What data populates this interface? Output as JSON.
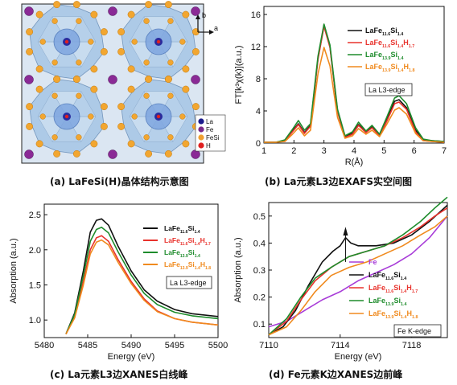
{
  "captions": {
    "a": "(a) LaFeSi(H)晶体结构示意图",
    "b": "(b) La元素L3边EXAFS实空间图",
    "c": "(c) La元素L3边XANES白线峰",
    "d": "(d) Fe元素K边XANES边前峰"
  },
  "crystal": {
    "axis_b": "b",
    "axis_a": "a",
    "legend": [
      {
        "label": "La",
        "color": "#1a1a8c"
      },
      {
        "label": "Fe",
        "color": "#7a2a8a"
      },
      {
        "label": "FeSi",
        "color": "#f0a030"
      },
      {
        "label": "H",
        "color": "#e02020"
      }
    ]
  },
  "colors": {
    "black": "#111111",
    "red": "#e8322c",
    "green": "#1e8c2c",
    "orange": "#f08a1e",
    "purple": "#a83cd8"
  },
  "legend_labels": [
    {
      "base": "LaFe",
      "s1": "11.6",
      "mid": "Si",
      "s2": "1.4",
      "h": "",
      "s3": ""
    },
    {
      "base": "LaFe",
      "s1": "11.6",
      "mid": "Si",
      "s2": "1.4",
      "h": "H",
      "s3": "1.7"
    },
    {
      "base": "LaFe",
      "s1": "13.9",
      "mid": "Si",
      "s2": "1.4",
      "h": "",
      "s3": ""
    },
    {
      "base": "LaFe",
      "s1": "13.9",
      "mid": "Si",
      "s2": "1.4",
      "h": "H",
      "s3": "1.8"
    }
  ],
  "chart_data": [
    {
      "id": "b",
      "type": "line",
      "xlabel": "R(Å)",
      "ylabel": "FT[k³χ(k)](a.u.)",
      "xlim": [
        1,
        7
      ],
      "ylim": [
        0,
        17
      ],
      "xticks": [
        1,
        2,
        3,
        4,
        5,
        6,
        7
      ],
      "yticks": [
        0,
        4,
        8,
        12,
        16
      ],
      "edge_label": "La L3-edge",
      "series": [
        {
          "name": "LaFe11.6Si1.4",
          "color_key": "black",
          "points": [
            [
              1,
              0.1
            ],
            [
              1.4,
              0.1
            ],
            [
              1.7,
              0.3
            ],
            [
              1.95,
              1.5
            ],
            [
              2.15,
              2.4
            ],
            [
              2.35,
              1.3
            ],
            [
              2.55,
              2.2
            ],
            [
              2.8,
              10.5
            ],
            [
              3.0,
              14.7
            ],
            [
              3.2,
              12.0
            ],
            [
              3.45,
              4.0
            ],
            [
              3.7,
              0.8
            ],
            [
              3.95,
              1.2
            ],
            [
              4.15,
              2.3
            ],
            [
              4.4,
              1.4
            ],
            [
              4.6,
              2.0
            ],
            [
              4.85,
              1.0
            ],
            [
              5.1,
              3.0
            ],
            [
              5.35,
              5.2
            ],
            [
              5.5,
              5.4
            ],
            [
              5.75,
              4.4
            ],
            [
              6.05,
              1.6
            ],
            [
              6.3,
              0.4
            ],
            [
              6.6,
              0.3
            ],
            [
              7,
              0.2
            ]
          ]
        },
        {
          "name": "LaFe11.6Si1.4H1.7",
          "color_key": "red",
          "points": [
            [
              1,
              0.1
            ],
            [
              1.4,
              0.1
            ],
            [
              1.7,
              0.3
            ],
            [
              1.95,
              1.4
            ],
            [
              2.15,
              2.3
            ],
            [
              2.35,
              1.2
            ],
            [
              2.55,
              2.1
            ],
            [
              2.8,
              10.4
            ],
            [
              3.0,
              14.5
            ],
            [
              3.2,
              11.9
            ],
            [
              3.45,
              3.9
            ],
            [
              3.7,
              0.7
            ],
            [
              3.95,
              1.1
            ],
            [
              4.15,
              2.2
            ],
            [
              4.4,
              1.3
            ],
            [
              4.6,
              1.9
            ],
            [
              4.85,
              0.9
            ],
            [
              5.1,
              2.8
            ],
            [
              5.35,
              4.9
            ],
            [
              5.5,
              5.1
            ],
            [
              5.75,
              4.2
            ],
            [
              6.05,
              1.4
            ],
            [
              6.3,
              0.3
            ],
            [
              6.6,
              0.2
            ],
            [
              7,
              0.1
            ]
          ]
        },
        {
          "name": "LaFe13.9Si1.4",
          "color_key": "green",
          "points": [
            [
              1,
              0.1
            ],
            [
              1.4,
              0.1
            ],
            [
              1.7,
              0.4
            ],
            [
              1.95,
              1.7
            ],
            [
              2.15,
              2.8
            ],
            [
              2.35,
              1.6
            ],
            [
              2.55,
              2.4
            ],
            [
              2.8,
              10.8
            ],
            [
              3.0,
              14.8
            ],
            [
              3.2,
              12.2
            ],
            [
              3.45,
              4.2
            ],
            [
              3.7,
              0.9
            ],
            [
              3.95,
              1.4
            ],
            [
              4.15,
              2.6
            ],
            [
              4.4,
              1.5
            ],
            [
              4.6,
              2.2
            ],
            [
              4.85,
              1.1
            ],
            [
              5.1,
              3.3
            ],
            [
              5.35,
              5.6
            ],
            [
              5.5,
              5.9
            ],
            [
              5.75,
              4.9
            ],
            [
              6.05,
              1.9
            ],
            [
              6.3,
              0.5
            ],
            [
              6.6,
              0.3
            ],
            [
              7,
              0.2
            ]
          ]
        },
        {
          "name": "LaFe13.9Si1.4H1.8",
          "color_key": "orange",
          "points": [
            [
              1,
              0.1
            ],
            [
              1.4,
              0.1
            ],
            [
              1.7,
              0.2
            ],
            [
              1.95,
              1.1
            ],
            [
              2.15,
              1.9
            ],
            [
              2.35,
              0.9
            ],
            [
              2.55,
              1.6
            ],
            [
              2.8,
              8.6
            ],
            [
              3.0,
              11.9
            ],
            [
              3.2,
              9.6
            ],
            [
              3.45,
              3.2
            ],
            [
              3.7,
              0.6
            ],
            [
              3.95,
              0.9
            ],
            [
              4.15,
              1.8
            ],
            [
              4.4,
              1.1
            ],
            [
              4.6,
              1.6
            ],
            [
              4.85,
              0.8
            ],
            [
              5.1,
              2.4
            ],
            [
              5.35,
              4.1
            ],
            [
              5.5,
              4.4
            ],
            [
              5.75,
              3.6
            ],
            [
              6.05,
              1.2
            ],
            [
              6.3,
              0.3
            ],
            [
              6.6,
              0.2
            ],
            [
              7,
              0.1
            ]
          ]
        }
      ]
    },
    {
      "id": "c",
      "type": "line",
      "xlabel": "Energy (eV)",
      "ylabel": "Absorption (a.u.)",
      "xlim": [
        5480,
        5500
      ],
      "ylim": [
        0.75,
        2.65
      ],
      "xticks": [
        5480,
        5485,
        5490,
        5495,
        5500
      ],
      "yticks": [
        1.0,
        1.5,
        2.0,
        2.5
      ],
      "edge_label": "La L3-edge",
      "series": [
        {
          "name": "LaFe11.6Si1.4",
          "color_key": "black",
          "points": [
            [
              5482.5,
              0.8
            ],
            [
              5483.5,
              1.1
            ],
            [
              5484.5,
              1.7
            ],
            [
              5485.3,
              2.25
            ],
            [
              5486.0,
              2.42
            ],
            [
              5486.6,
              2.44
            ],
            [
              5487.4,
              2.35
            ],
            [
              5488.5,
              2.05
            ],
            [
              5490,
              1.7
            ],
            [
              5491.5,
              1.43
            ],
            [
              5493,
              1.27
            ],
            [
              5495,
              1.15
            ],
            [
              5497,
              1.09
            ],
            [
              5500,
              1.05
            ]
          ]
        },
        {
          "name": "LaFe11.6Si1.4H1.7",
          "color_key": "red",
          "points": [
            [
              5482.5,
              0.8
            ],
            [
              5483.5,
              1.05
            ],
            [
              5484.5,
              1.55
            ],
            [
              5485.3,
              2.0
            ],
            [
              5486.0,
              2.17
            ],
            [
              5486.6,
              2.2
            ],
            [
              5487.4,
              2.12
            ],
            [
              5488.5,
              1.86
            ],
            [
              5490,
              1.55
            ],
            [
              5491.5,
              1.3
            ],
            [
              5493,
              1.13
            ],
            [
              5495,
              1.02
            ],
            [
              5497,
              0.97
            ],
            [
              5500,
              0.93
            ]
          ]
        },
        {
          "name": "LaFe13.9Si1.4",
          "color_key": "green",
          "points": [
            [
              5482.5,
              0.8
            ],
            [
              5483.5,
              1.08
            ],
            [
              5484.5,
              1.63
            ],
            [
              5485.3,
              2.12
            ],
            [
              5486.0,
              2.29
            ],
            [
              5486.6,
              2.32
            ],
            [
              5487.4,
              2.24
            ],
            [
              5488.5,
              1.97
            ],
            [
              5490,
              1.64
            ],
            [
              5491.5,
              1.38
            ],
            [
              5493,
              1.22
            ],
            [
              5495,
              1.11
            ],
            [
              5497,
              1.06
            ],
            [
              5500,
              1.02
            ]
          ]
        },
        {
          "name": "LaFe13.9Si1.4H1.8",
          "color_key": "orange",
          "points": [
            [
              5482.5,
              0.8
            ],
            [
              5483.5,
              1.03
            ],
            [
              5484.5,
              1.5
            ],
            [
              5485.3,
              1.94
            ],
            [
              5486.0,
              2.11
            ],
            [
              5486.6,
              2.14
            ],
            [
              5487.4,
              2.07
            ],
            [
              5488.5,
              1.82
            ],
            [
              5490,
              1.52
            ],
            [
              5491.5,
              1.28
            ],
            [
              5493,
              1.12
            ],
            [
              5495,
              1.02
            ],
            [
              5497,
              0.97
            ],
            [
              5500,
              0.93
            ]
          ]
        }
      ]
    },
    {
      "id": "d",
      "type": "line",
      "xlabel": "Energy (eV)",
      "ylabel": "Absorption (a.u.)",
      "xlim": [
        7110,
        7120
      ],
      "ylim": [
        0.05,
        0.55
      ],
      "xticks": [
        7110,
        7114,
        7118
      ],
      "yticks": [
        0.1,
        0.2,
        0.3,
        0.4,
        0.5
      ],
      "edge_label": "Fe K-edge",
      "series": [
        {
          "name": "Fe",
          "color_key": "purple",
          "points": [
            [
              7110,
              0.09
            ],
            [
              7111,
              0.11
            ],
            [
              7112,
              0.15
            ],
            [
              7113,
              0.19
            ],
            [
              7114,
              0.22
            ],
            [
              7115,
              0.26
            ],
            [
              7116,
              0.29
            ],
            [
              7117,
              0.32
            ],
            [
              7118,
              0.36
            ],
            [
              7119,
              0.42
            ],
            [
              7120,
              0.5
            ]
          ]
        },
        {
          "name": "LaFe11.6Si1.4",
          "color_key": "black",
          "points": [
            [
              7110,
              0.06
            ],
            [
              7110.8,
              0.09
            ],
            [
              7111.5,
              0.15
            ],
            [
              7112.2,
              0.24
            ],
            [
              7113,
              0.33
            ],
            [
              7113.6,
              0.37
            ],
            [
              7114.0,
              0.39
            ],
            [
              7114.3,
              0.42
            ],
            [
              7114.6,
              0.4
            ],
            [
              7115,
              0.39
            ],
            [
              7116,
              0.39
            ],
            [
              7117,
              0.4
            ],
            [
              7118,
              0.43
            ],
            [
              7119,
              0.48
            ],
            [
              7120,
              0.54
            ]
          ]
        },
        {
          "name": "LaFe11.6Si1.4H1.7",
          "color_key": "red",
          "points": [
            [
              7110,
              0.06
            ],
            [
              7111,
              0.11
            ],
            [
              7111.8,
              0.19
            ],
            [
              7112.6,
              0.26
            ],
            [
              7113.5,
              0.31
            ],
            [
              7114.5,
              0.35
            ],
            [
              7115.5,
              0.37
            ],
            [
              7116.5,
              0.39
            ],
            [
              7117.5,
              0.42
            ],
            [
              7118.5,
              0.46
            ],
            [
              7119.3,
              0.5
            ],
            [
              7120,
              0.53
            ]
          ]
        },
        {
          "name": "LaFe13.9Si1.4",
          "color_key": "green",
          "points": [
            [
              7110,
              0.06
            ],
            [
              7111,
              0.12
            ],
            [
              7111.8,
              0.2
            ],
            [
              7112.6,
              0.27
            ],
            [
              7113.5,
              0.31
            ],
            [
              7114.5,
              0.35
            ],
            [
              7115.5,
              0.37
            ],
            [
              7116.5,
              0.39
            ],
            [
              7117.5,
              0.43
            ],
            [
              7118.5,
              0.48
            ],
            [
              7119.3,
              0.53
            ],
            [
              7120,
              0.57
            ]
          ]
        },
        {
          "name": "LaFe13.9Si1.4H1.8",
          "color_key": "orange",
          "points": [
            [
              7110,
              0.06
            ],
            [
              7111,
              0.09
            ],
            [
              7111.8,
              0.15
            ],
            [
              7112.6,
              0.22
            ],
            [
              7113.5,
              0.28
            ],
            [
              7114.5,
              0.31
            ],
            [
              7115.5,
              0.33
            ],
            [
              7116.5,
              0.36
            ],
            [
              7117.5,
              0.39
            ],
            [
              7118.5,
              0.43
            ],
            [
              7119.3,
              0.46
            ],
            [
              7120,
              0.5
            ]
          ]
        }
      ]
    }
  ]
}
